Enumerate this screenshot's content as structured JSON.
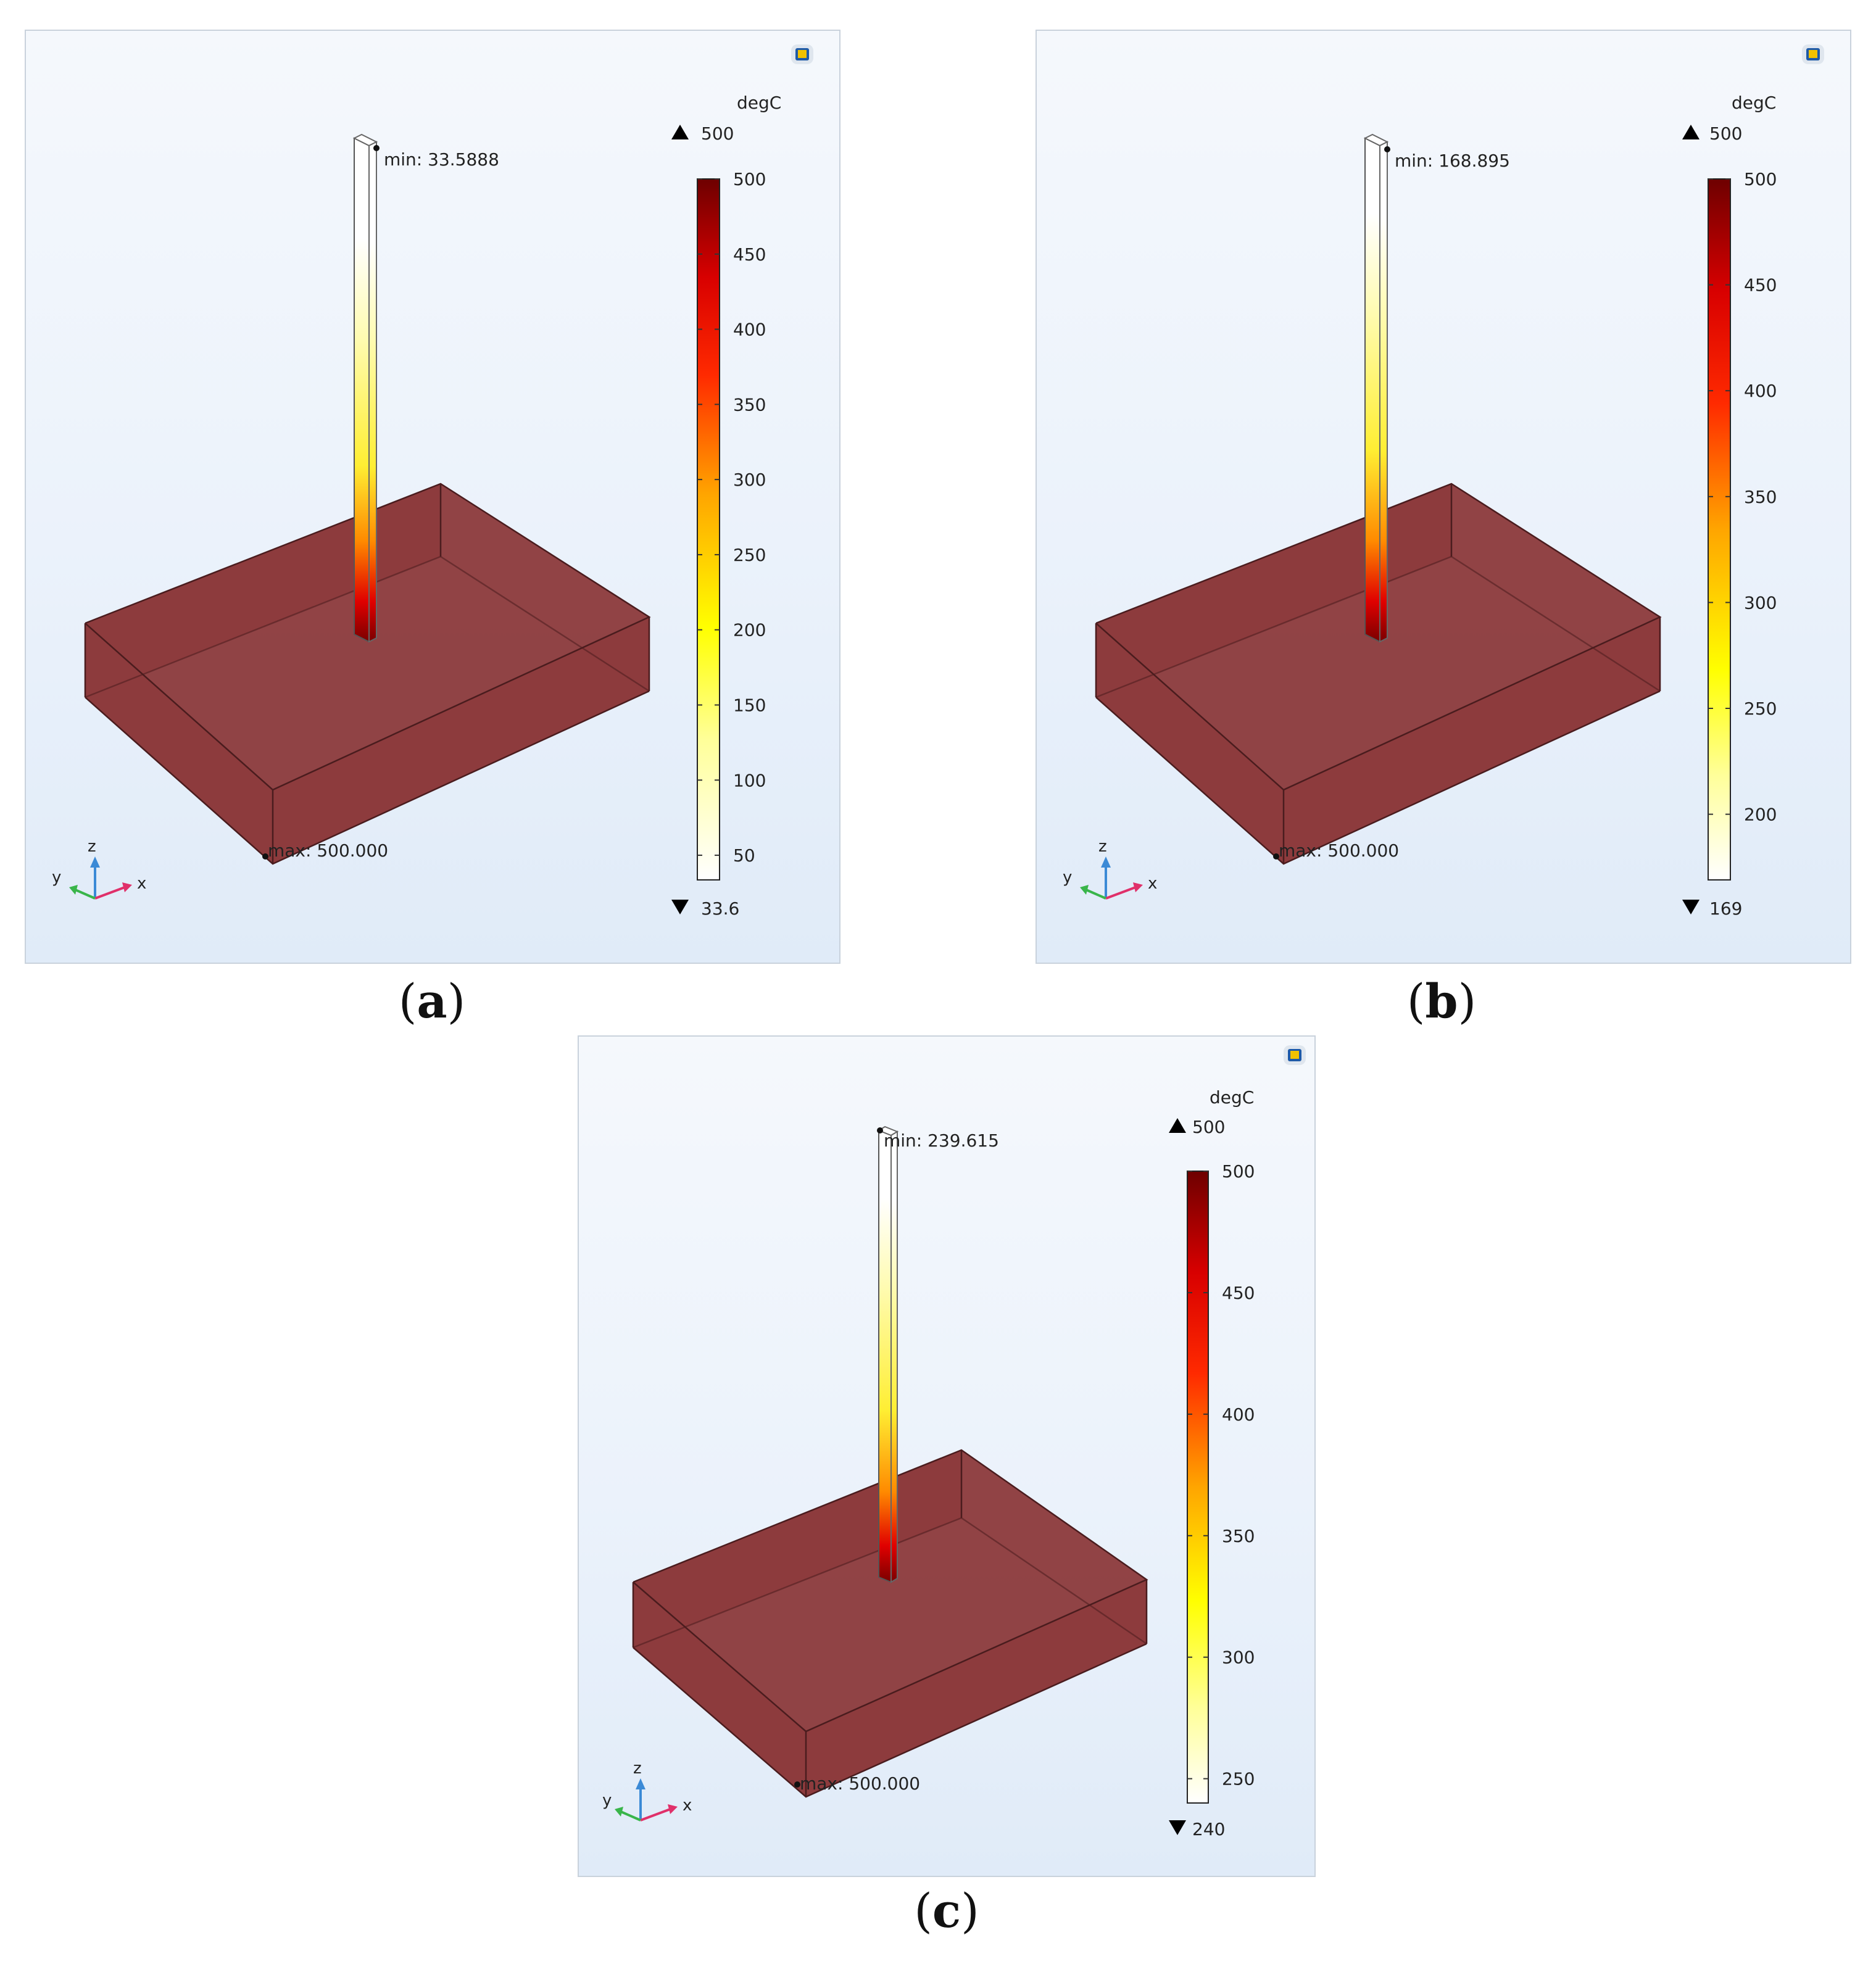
{
  "panels": [
    {
      "caption": "a",
      "unit": "degC",
      "max_marker": "500",
      "min_marker": "33.6",
      "min_annotation": "min: 33.5888",
      "max_annotation": "max: 500.000",
      "colorbar": {
        "min": 33.6,
        "max": 500,
        "ticks": [
          500,
          450,
          400,
          350,
          300,
          250,
          200,
          150,
          100,
          50
        ]
      },
      "axis_labels": {
        "x": "x",
        "y": "y",
        "z": "z"
      }
    },
    {
      "caption": "b",
      "unit": "degC",
      "max_marker": "500",
      "min_marker": "169",
      "min_annotation": "min: 168.895",
      "max_annotation": "max: 500.000",
      "colorbar": {
        "min": 169,
        "max": 500,
        "ticks": [
          500,
          450,
          400,
          350,
          300,
          250,
          200
        ]
      },
      "axis_labels": {
        "x": "x",
        "y": "y",
        "z": "z"
      }
    },
    {
      "caption": "c",
      "unit": "degC",
      "max_marker": "500",
      "min_marker": "240",
      "min_annotation": "min: 239.615",
      "max_annotation": "max: 500.000",
      "colorbar": {
        "min": 240,
        "max": 500,
        "ticks": [
          500,
          450,
          400,
          350,
          300,
          250
        ]
      },
      "axis_labels": {
        "x": "x",
        "y": "y",
        "z": "z"
      }
    }
  ],
  "colors": {
    "block_fill": "#8c3a3c",
    "block_edge": "#4a1c1e",
    "colormap": [
      "#ffffff",
      "#ffff99",
      "#ffff00",
      "#ffb000",
      "#ff6000",
      "#ff0000",
      "#7a0000"
    ]
  }
}
